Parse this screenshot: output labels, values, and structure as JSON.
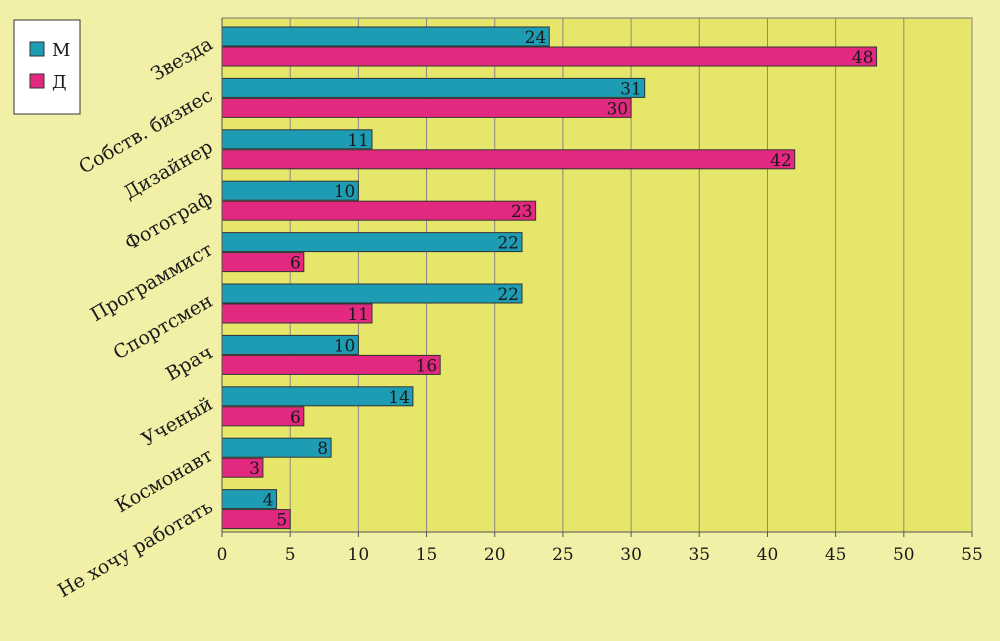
{
  "chart_data": {
    "type": "bar",
    "orientation": "horizontal",
    "categories": [
      "Звезда",
      "Собств. бизнес",
      "Дизайнер",
      "Фотограф",
      "Программист",
      "Спортсмен",
      "Врач",
      "Ученый",
      "Космонавт",
      "Не хочу работать"
    ],
    "series": [
      {
        "name": "М",
        "color": "#1e9cb4",
        "values": [
          24,
          31,
          11,
          10,
          22,
          22,
          10,
          14,
          8,
          4
        ]
      },
      {
        "name": "Д",
        "color": "#e3287f",
        "values": [
          48,
          30,
          42,
          23,
          6,
          11,
          16,
          6,
          3,
          5
        ]
      }
    ],
    "xlim": [
      0,
      55
    ],
    "xticks": [
      0,
      5,
      10,
      15,
      20,
      25,
      30,
      35,
      40,
      45,
      50,
      55
    ],
    "grid": true,
    "legend": "top-left",
    "plot_background": "#e6e66a",
    "page_background": "#f2f0a6"
  }
}
